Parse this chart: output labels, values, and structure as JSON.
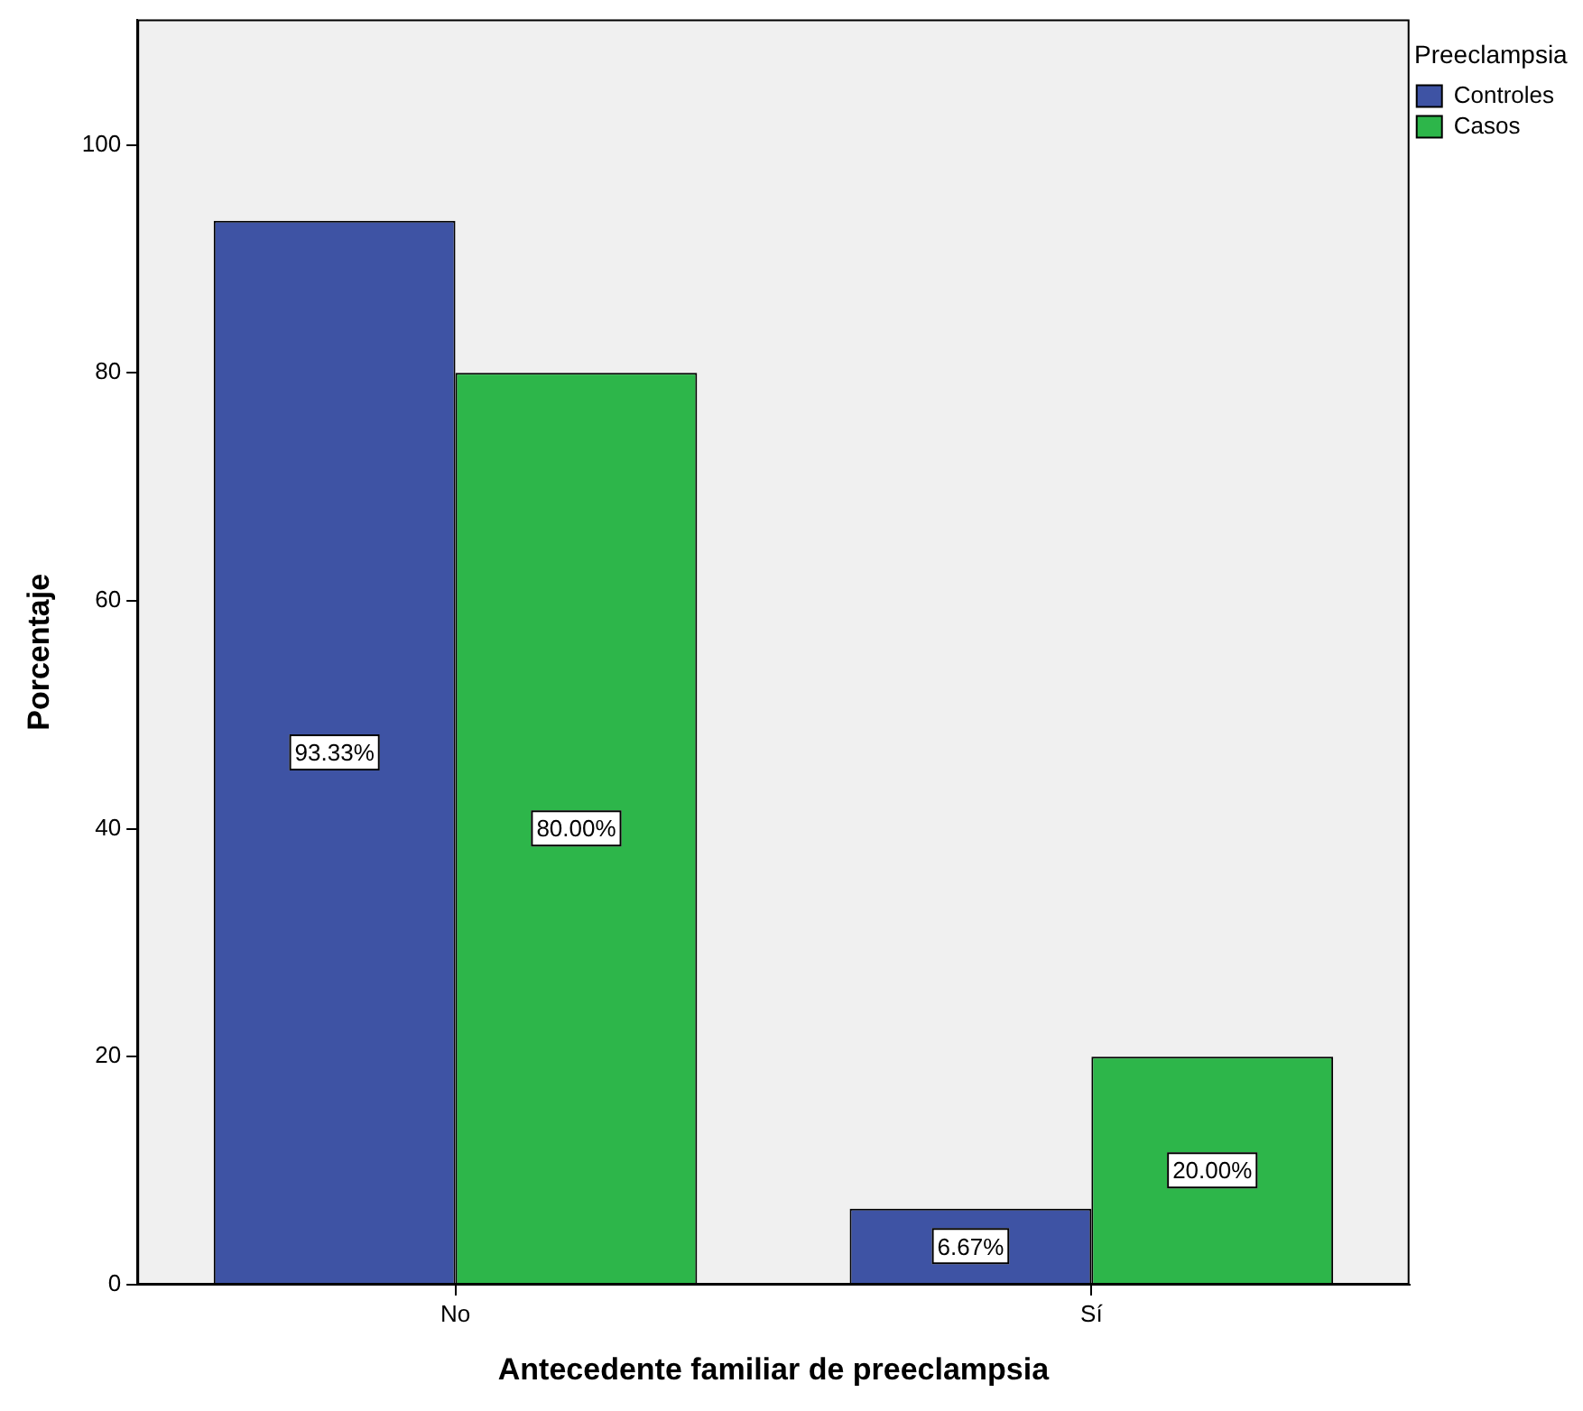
{
  "chart_data": {
    "type": "bar",
    "xlabel": "Antecedente familiar de preeclampsia",
    "ylabel": "Porcentaje",
    "legend_title": "Preeclampsia",
    "legend": "top right",
    "grid": false,
    "categories": [
      "No",
      "Sí"
    ],
    "series": [
      {
        "name": "Controles",
        "color": "#3e53a4",
        "values": [
          93.33,
          6.67
        ],
        "value_labels": [
          "93.33%",
          "6.67%"
        ]
      },
      {
        "name": "Casos",
        "color": "#2db64a",
        "values": [
          80.0,
          20.0
        ],
        "value_labels": [
          "80.00%",
          "20.00%"
        ]
      }
    ],
    "ylim": [
      0,
      111
    ],
    "yticks": [
      0,
      20,
      40,
      60,
      80,
      100
    ]
  }
}
